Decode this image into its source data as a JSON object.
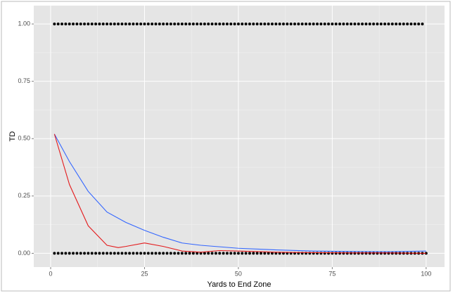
{
  "chart_data": {
    "type": "scatter",
    "xlabel": "Yards to End Zone",
    "ylabel": "TD",
    "xlim": [
      -4.5,
      104.9
    ],
    "ylim": [
      -0.06,
      1.08
    ],
    "xticks": [
      0,
      25,
      50,
      75,
      100
    ],
    "yticks": [
      {
        "value": 0,
        "label": "0.00"
      },
      {
        "value": 0.25,
        "label": "0.25"
      },
      {
        "value": 0.5,
        "label": "0.50"
      },
      {
        "value": 0.75,
        "label": "0.75"
      },
      {
        "value": 1,
        "label": "1.00"
      }
    ],
    "grid": true,
    "series": [
      {
        "type": "scatter",
        "color": "#000000",
        "x": [
          1,
          2,
          3,
          4,
          5,
          6,
          7,
          8,
          9,
          10,
          11,
          12,
          13,
          14,
          15,
          16,
          17,
          18,
          19,
          20,
          21,
          22,
          23,
          24,
          25,
          26,
          27,
          28,
          29,
          30,
          31,
          32,
          33,
          34,
          35,
          36,
          37,
          38,
          39,
          40,
          41,
          42,
          43,
          44,
          45,
          46,
          47,
          48,
          49,
          50,
          51,
          52,
          53,
          54,
          55,
          56,
          57,
          58,
          59,
          60,
          61,
          62,
          63,
          64,
          65,
          66,
          67,
          68,
          69,
          70,
          71,
          72,
          73,
          74,
          75,
          76,
          77,
          78,
          79,
          80,
          81,
          82,
          83,
          84,
          85,
          86,
          87,
          88,
          89,
          90,
          91,
          92,
          93,
          94,
          95,
          96,
          97,
          98,
          99
        ],
        "values": [
          1,
          1,
          1,
          1,
          1,
          1,
          1,
          1,
          1,
          1,
          1,
          1,
          1,
          1,
          1,
          1,
          1,
          1,
          1,
          1,
          1,
          1,
          1,
          1,
          1,
          1,
          1,
          1,
          1,
          1,
          1,
          1,
          1,
          1,
          1,
          1,
          1,
          1,
          1,
          1,
          1,
          1,
          1,
          1,
          1,
          1,
          1,
          1,
          1,
          1,
          1,
          1,
          1,
          1,
          1,
          1,
          1,
          1,
          1,
          1,
          1,
          1,
          1,
          1,
          1,
          1,
          1,
          1,
          1,
          1,
          1,
          1,
          1,
          1,
          1,
          1,
          1,
          1,
          1,
          1,
          1,
          1,
          1,
          1,
          1,
          1,
          1,
          1,
          1,
          1,
          1,
          1,
          1,
          1,
          1,
          1,
          1,
          1,
          1
        ]
      },
      {
        "type": "scatter",
        "color": "#000000",
        "x": [
          1,
          2,
          3,
          4,
          5,
          6,
          7,
          8,
          9,
          10,
          11,
          12,
          13,
          14,
          15,
          16,
          17,
          18,
          19,
          20,
          21,
          22,
          23,
          24,
          25,
          26,
          27,
          28,
          29,
          30,
          31,
          32,
          33,
          34,
          35,
          36,
          37,
          38,
          39,
          40,
          41,
          42,
          43,
          44,
          45,
          46,
          47,
          48,
          49,
          50,
          51,
          52,
          53,
          54,
          55,
          56,
          57,
          58,
          59,
          60,
          61,
          62,
          63,
          64,
          65,
          66,
          67,
          68,
          69,
          70,
          71,
          72,
          73,
          74,
          75,
          76,
          77,
          78,
          79,
          80,
          81,
          82,
          83,
          84,
          85,
          86,
          87,
          88,
          89,
          90,
          91,
          92,
          93,
          94,
          95,
          96,
          97,
          98,
          99,
          100
        ],
        "values": [
          0,
          0,
          0,
          0,
          0,
          0,
          0,
          0,
          0,
          0,
          0,
          0,
          0,
          0,
          0,
          0,
          0,
          0,
          0,
          0,
          0,
          0,
          0,
          0,
          0,
          0,
          0,
          0,
          0,
          0,
          0,
          0,
          0,
          0,
          0,
          0,
          0,
          0,
          0,
          0,
          0,
          0,
          0,
          0,
          0,
          0,
          0,
          0,
          0,
          0,
          0,
          0,
          0,
          0,
          0,
          0,
          0,
          0,
          0,
          0,
          0,
          0,
          0,
          0,
          0,
          0,
          0,
          0,
          0,
          0,
          0,
          0,
          0,
          0,
          0,
          0,
          0,
          0,
          0,
          0,
          0,
          0,
          0,
          0,
          0,
          0,
          0,
          0,
          0,
          0,
          0,
          0,
          0,
          0,
          0,
          0,
          0,
          0,
          0,
          0
        ]
      },
      {
        "type": "line",
        "color": "#3366ff",
        "x": [
          1,
          5,
          10,
          15,
          20,
          25,
          30,
          35,
          40,
          50,
          60,
          70,
          80,
          90,
          100
        ],
        "values": [
          0.52,
          0.4,
          0.27,
          0.18,
          0.135,
          0.1,
          0.07,
          0.045,
          0.035,
          0.022,
          0.015,
          0.01,
          0.008,
          0.007,
          0.01
        ]
      },
      {
        "type": "line",
        "color": "#e41a1c",
        "x": [
          1,
          5,
          10,
          15,
          18,
          20,
          25,
          30,
          35,
          40,
          45,
          50,
          60,
          70,
          80,
          90,
          100
        ],
        "values": [
          0.52,
          0.3,
          0.12,
          0.035,
          0.025,
          0.03,
          0.045,
          0.03,
          0.01,
          0.005,
          0.012,
          0.01,
          0.005,
          0.003,
          0.002,
          0.002,
          0
        ]
      }
    ]
  }
}
